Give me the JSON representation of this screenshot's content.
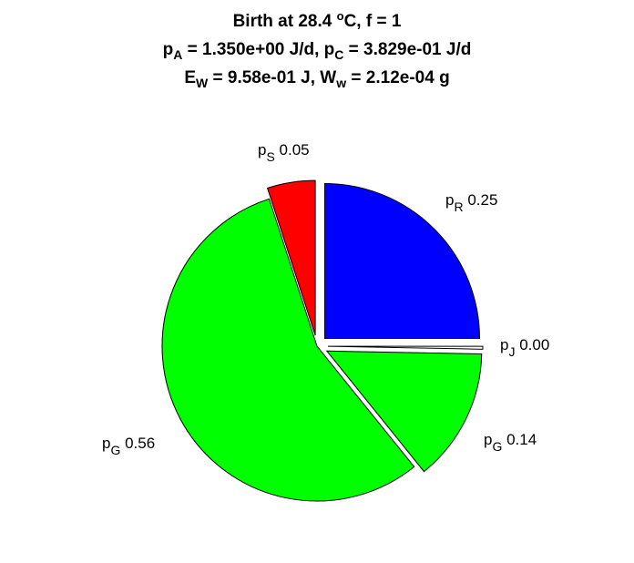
{
  "title": {
    "line1_prefix": "Birth at 28.4 ",
    "line1_sup": "o",
    "line1_suffix": "C, f = 1",
    "line2_a_sym": "p",
    "line2_a_sub": "A",
    "line2_a_val": " = 1.350e+00 J/d, ",
    "line2_c_sym": "p",
    "line2_c_sub": "C",
    "line2_c_val": " = 3.829e-01 J/d",
    "line3_e_sym": "E",
    "line3_e_sub": "W",
    "line3_e_val": " = 9.58e-01 J, ",
    "line3_w_sym": "W",
    "line3_w_sub": "w",
    "line3_w_val": " = 2.12e-04 g"
  },
  "chart_data": {
    "type": "pie",
    "slices": [
      {
        "symbol": "p",
        "sub": "R",
        "value_label": "0.25",
        "fraction": 0.25,
        "color": "#0000ff",
        "exploded": true
      },
      {
        "symbol": "p",
        "sub": "J",
        "value_label": "0.00",
        "fraction": 0.003,
        "color": "#ffffff",
        "exploded": true
      },
      {
        "symbol": "p",
        "sub": "G",
        "value_label": "0.14",
        "fraction": 0.139,
        "color": "#00ff00",
        "exploded": true
      },
      {
        "symbol": "p",
        "sub": "G",
        "value_label": "0.56",
        "fraction": 0.558,
        "color": "#00ff00",
        "exploded": false
      },
      {
        "symbol": "p",
        "sub": "S",
        "value_label": "0.05",
        "fraction": 0.05,
        "color": "#ff0000",
        "exploded": true
      }
    ]
  }
}
